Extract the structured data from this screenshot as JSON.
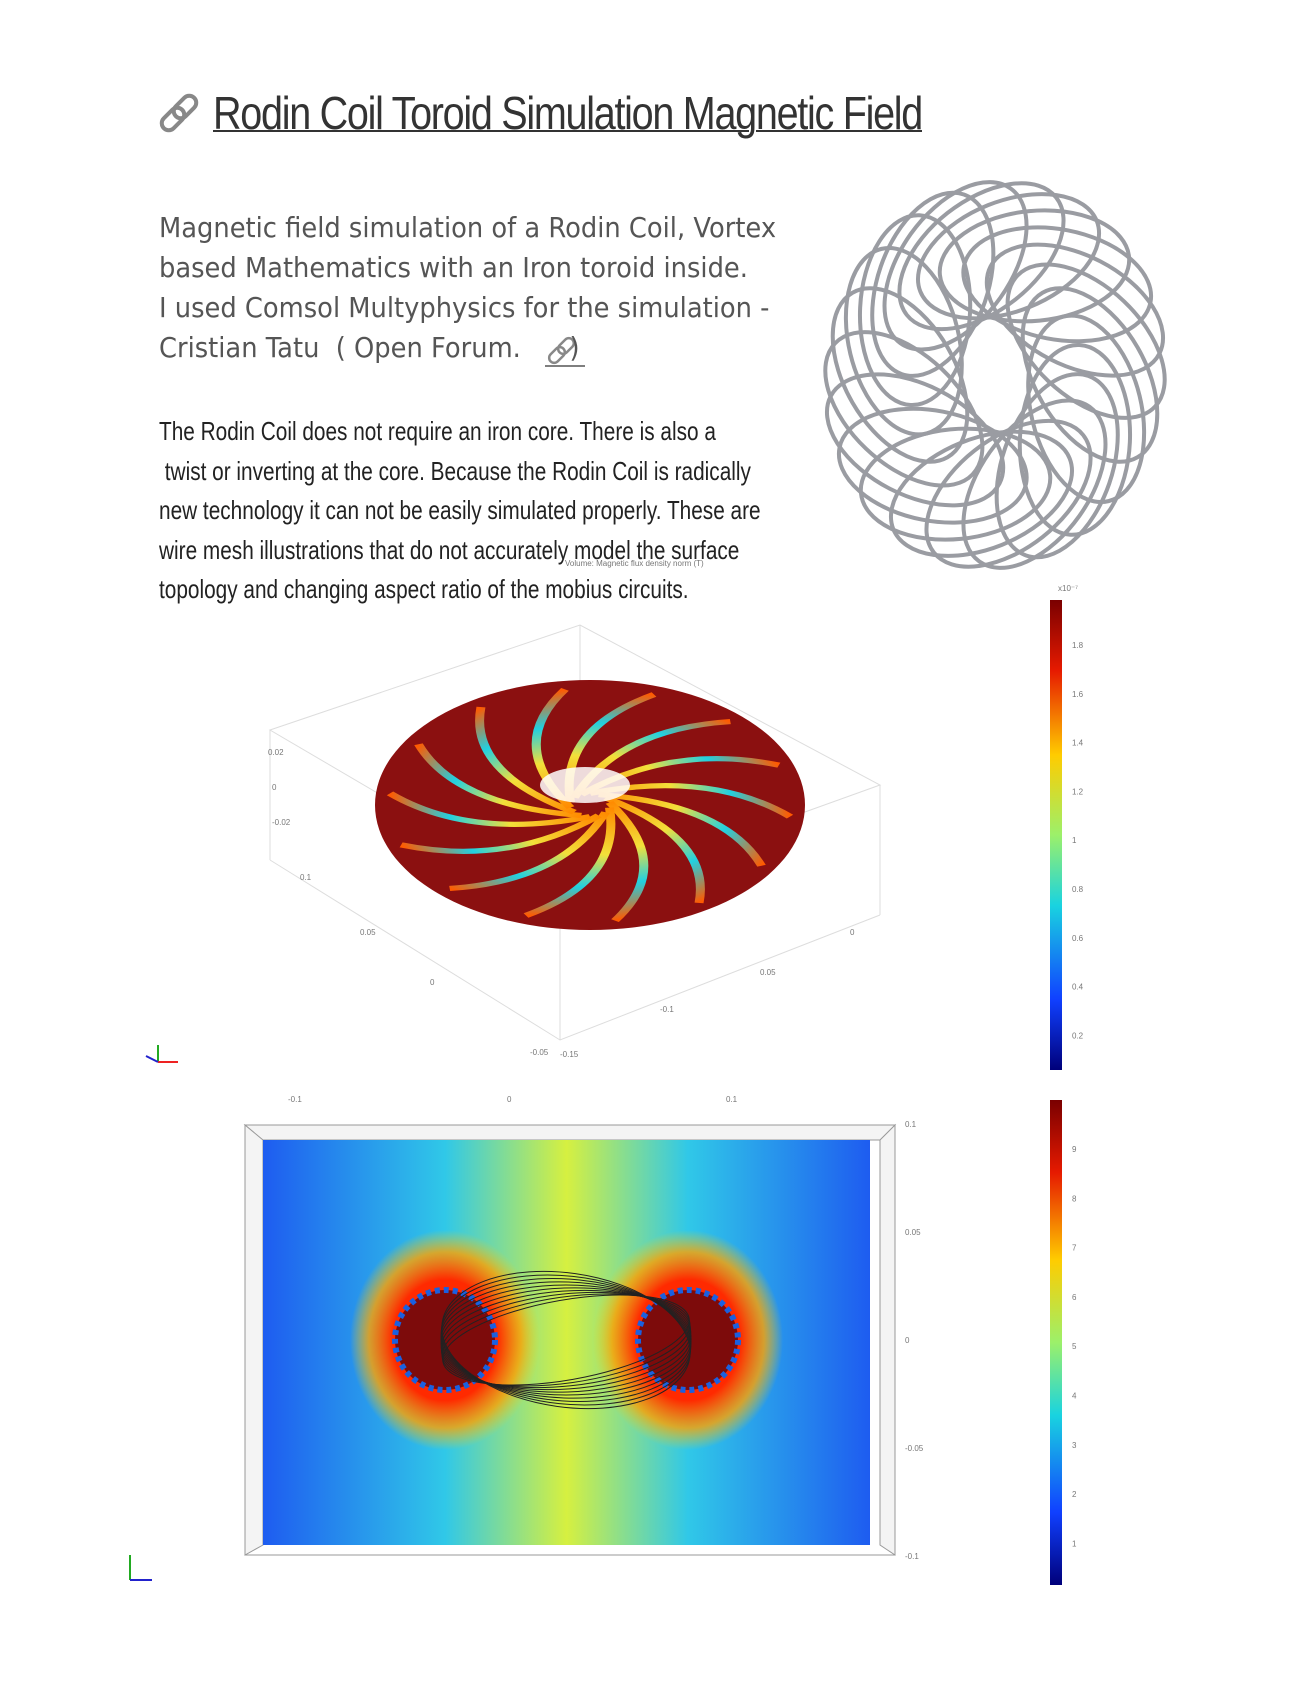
{
  "header": {
    "title": "Rodin Coil Toroid Simulation Magnetic Field"
  },
  "intro": {
    "lines": [
      "Magnetic field simulation of a Rodin Coil, Vortex",
      "based Mathematics with an Iron toroid inside.",
      "I used Comsol Multyphysics for the simulation -",
      "Cristian Tatu  ( Open Forum. "
    ],
    "close": ")"
  },
  "body": {
    "lines": [
      "The Rodin Coil does not require an iron core. There is also a",
      " twist or inverting at the core. Because the Rodin Coil is radically",
      "new technology it can not be easily simulated properly. These are",
      "wire mesh illustrations that do not accurately model the surface",
      "topology and changing aspect ratio of the mobius circuits."
    ]
  },
  "figure1": {
    "caption": "Volume: Magnetic flux density norm (T)",
    "exponent": "x10⁻⁷",
    "colorbar": [
      "1.8",
      "1.6",
      "1.4",
      "1.2",
      "1",
      "0.8",
      "0.6",
      "0.4",
      "0.2"
    ],
    "axis_labels": [
      "0.02",
      "0",
      "-0.02",
      "0.1",
      "0.05",
      "0",
      "-0.05",
      "-0.15",
      "-0.1",
      "0.05",
      "0"
    ]
  },
  "figure2": {
    "x_labels": [
      "-0.1",
      "0",
      "0.1"
    ],
    "y_labels": [
      "0.1",
      "0.05",
      "0",
      "-0.05",
      "-0.1"
    ],
    "colorbar": [
      "9",
      "8",
      "7",
      "6",
      "5",
      "4",
      "3",
      "2",
      "1"
    ]
  }
}
